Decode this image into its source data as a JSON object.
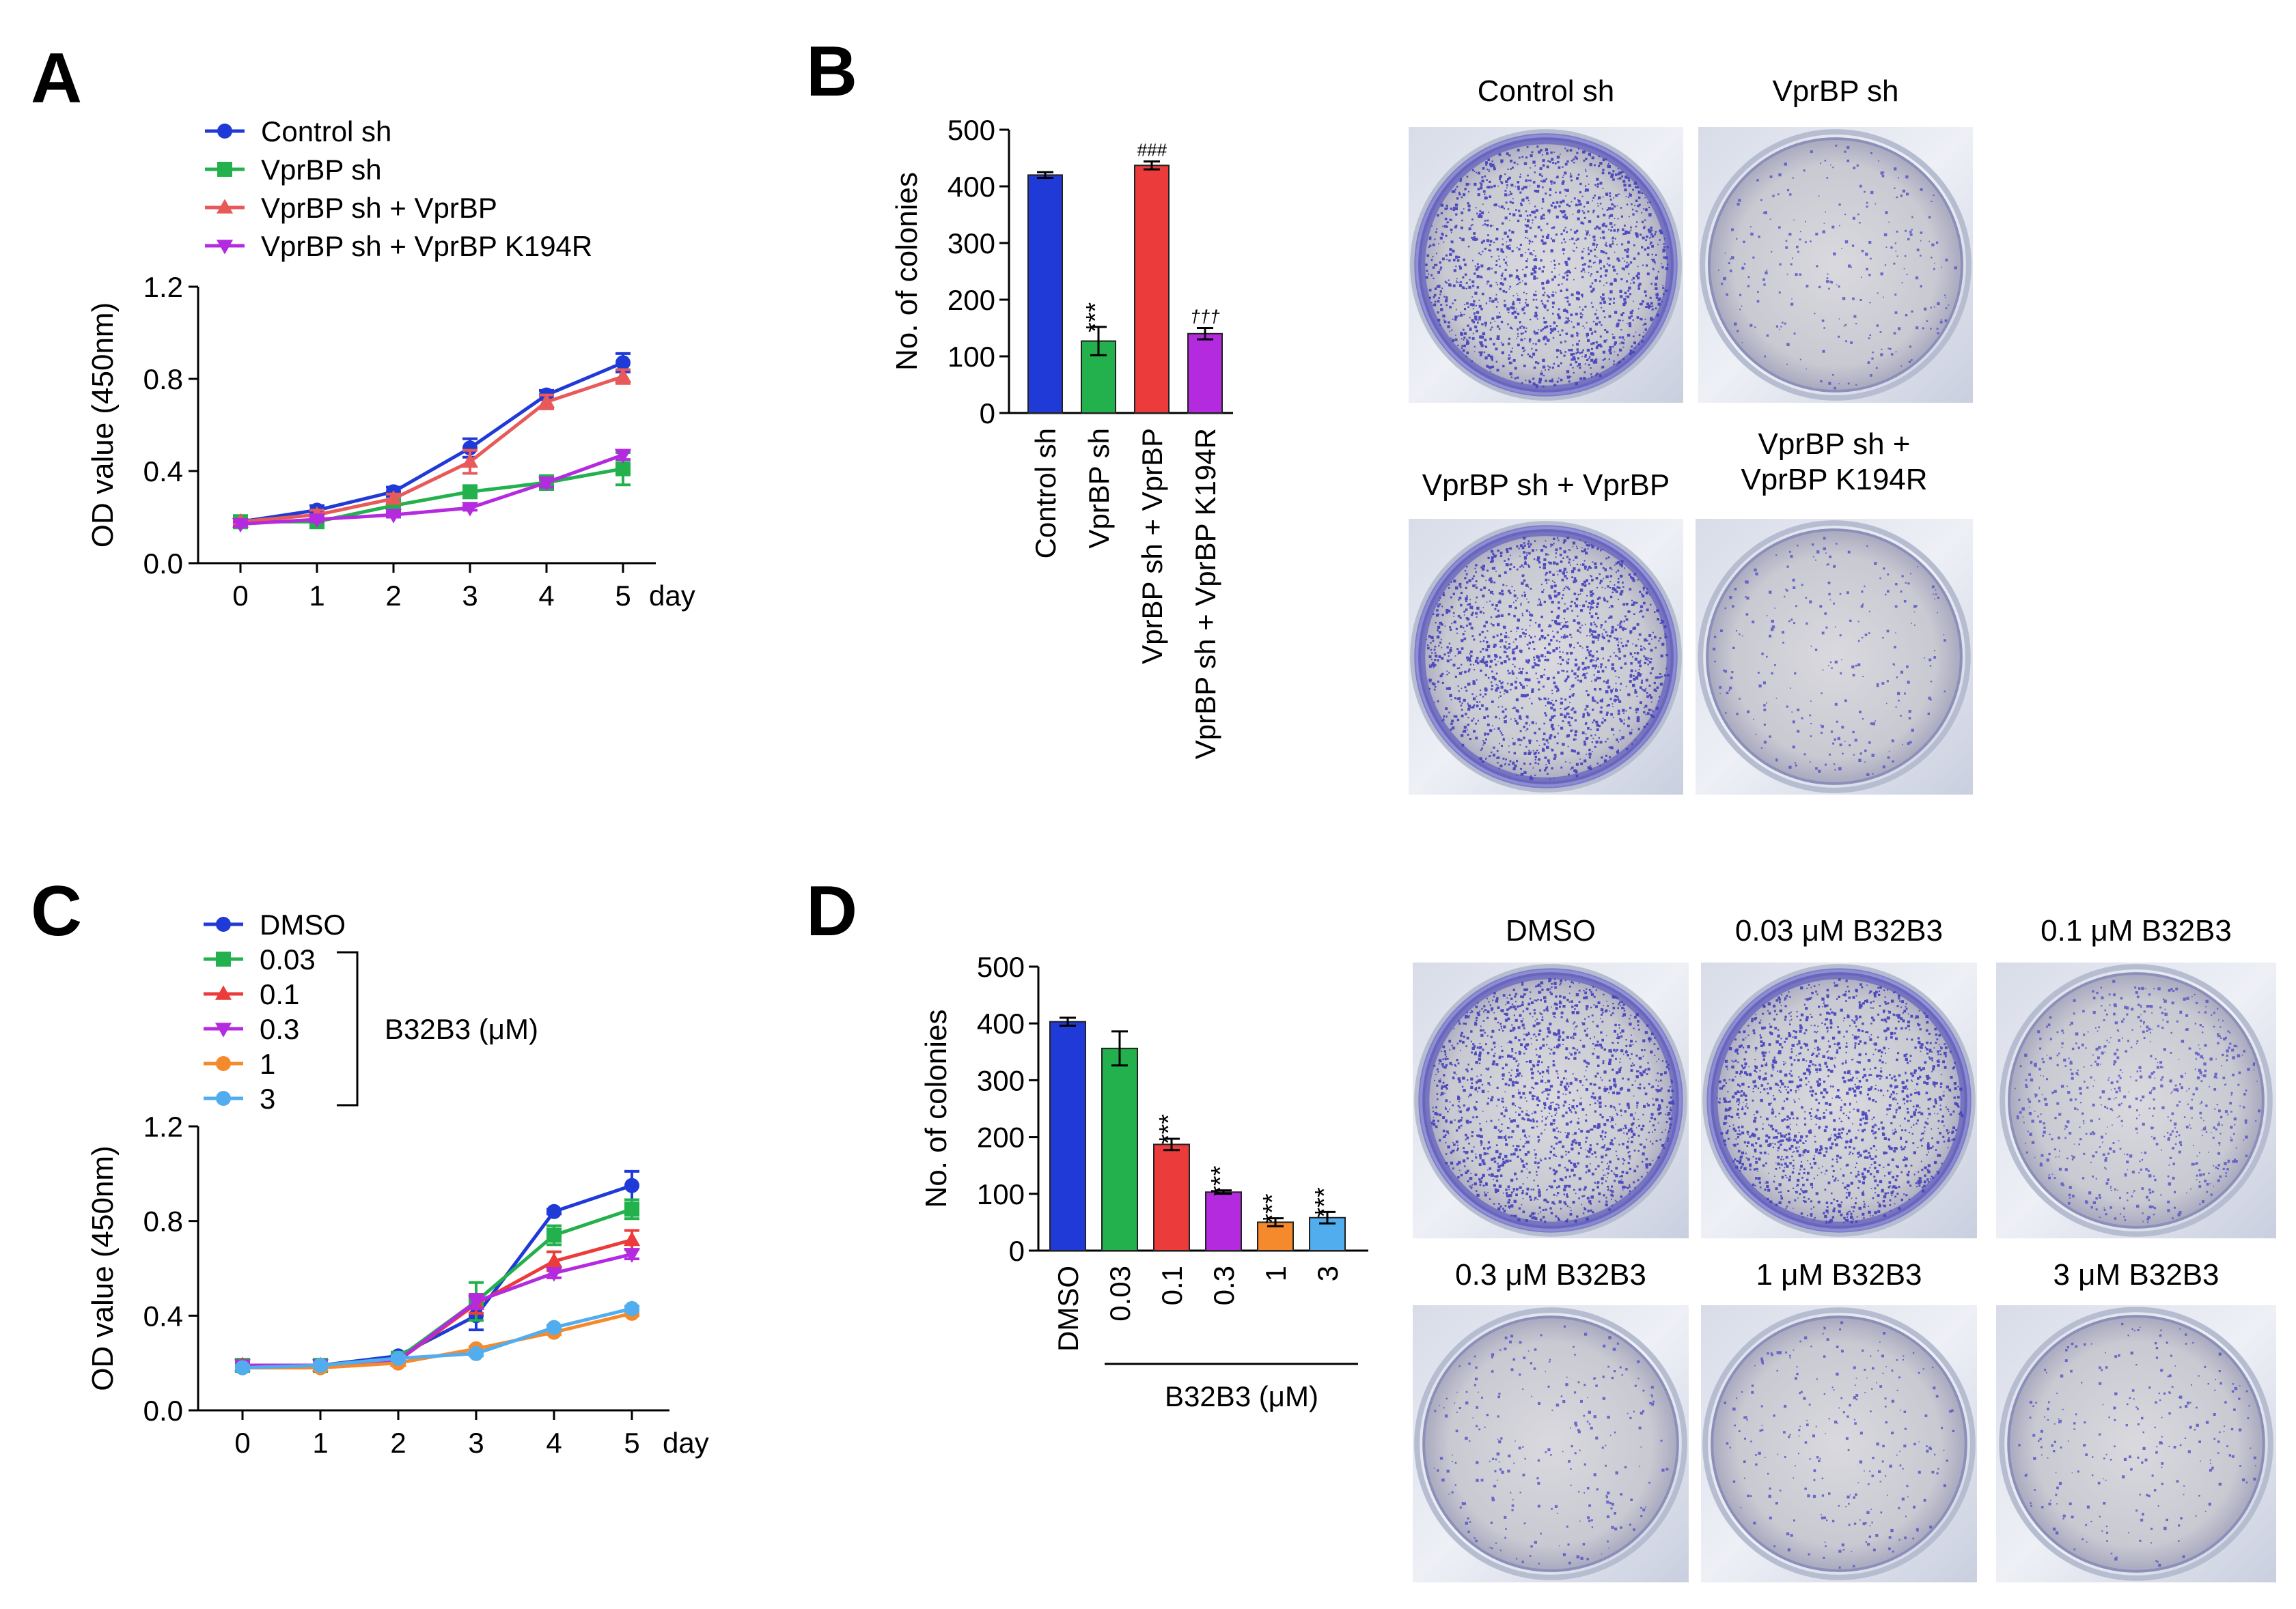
{
  "panels": {
    "A": "A",
    "B": "B",
    "C": "C",
    "D": "D"
  },
  "colors": {
    "blue": "#1f3ad6",
    "green": "#22b14c",
    "red": "#ec3b3b",
    "salmon": "#e85a5a",
    "purple": "#b42adf",
    "orange": "#f58a2c",
    "lightblue": "#52adef"
  },
  "chart_data": [
    {
      "id": "A",
      "type": "line",
      "title": "",
      "xlabel": "day",
      "ylabel": "OD value (450nm)",
      "x": [
        0,
        1,
        2,
        3,
        4,
        5
      ],
      "x_tick_labels": [
        "0",
        "1",
        "2",
        "3",
        "4",
        "5"
      ],
      "ylim": [
        0,
        1.2
      ],
      "y_ticks": [
        "0.0",
        "0.4",
        "0.8",
        "1.2"
      ],
      "legend_position": "top-left",
      "series": [
        {
          "name": "Control sh",
          "color": "#1f3ad6",
          "marker": "circle",
          "values": [
            0.18,
            0.23,
            0.31,
            0.5,
            0.73,
            0.87
          ],
          "errors": [
            0.01,
            0.02,
            0.02,
            0.04,
            0.02,
            0.04
          ]
        },
        {
          "name": "VprBP sh",
          "color": "#22b14c",
          "marker": "square",
          "values": [
            0.18,
            0.18,
            0.25,
            0.31,
            0.35,
            0.41
          ],
          "errors": [
            0.01,
            0.02,
            0.02,
            0.02,
            0.03,
            0.07
          ]
        },
        {
          "name": "VprBP sh + VprBP",
          "color": "#e85a5a",
          "marker": "triangle",
          "values": [
            0.18,
            0.21,
            0.28,
            0.44,
            0.7,
            0.81
          ],
          "errors": [
            0.01,
            0.02,
            0.02,
            0.05,
            0.03,
            0.03
          ]
        },
        {
          "name": "VprBP sh + VprBP K194R",
          "color": "#b42adf",
          "marker": "triangle-down",
          "values": [
            0.17,
            0.19,
            0.21,
            0.24,
            0.35,
            0.47
          ],
          "errors": [
            0.01,
            0.01,
            0.01,
            0.01,
            0.02,
            0.02
          ]
        }
      ]
    },
    {
      "id": "B",
      "type": "bar",
      "title": "",
      "ylabel": "No. of colonies",
      "ylim": [
        0,
        500
      ],
      "y_ticks": [
        "0",
        "100",
        "200",
        "300",
        "400",
        "500"
      ],
      "categories": [
        "Control sh",
        "VprBP sh",
        "VprBP sh + VprBP",
        "VprBP sh + VprBP K194R"
      ],
      "values": [
        420,
        127,
        437,
        140
      ],
      "errors": [
        5,
        25,
        7,
        10
      ],
      "colors": [
        "#1f3ad6",
        "#22b14c",
        "#ec3b3b",
        "#b42adf"
      ],
      "annotations": [
        "",
        "***",
        "###",
        "†††"
      ]
    },
    {
      "id": "C",
      "type": "line",
      "title": "",
      "xlabel": "day",
      "ylabel": "OD value (450nm)",
      "x": [
        0,
        1,
        2,
        3,
        4,
        5
      ],
      "x_tick_labels": [
        "0",
        "1",
        "2",
        "3",
        "4",
        "5"
      ],
      "ylim": [
        0,
        1.2
      ],
      "y_ticks": [
        "0.0",
        "0.4",
        "0.8",
        "1.2"
      ],
      "legend_position": "top-left",
      "legend_group_label": "B32B3 (μM)",
      "series": [
        {
          "name": "DMSO",
          "color": "#1f3ad6",
          "marker": "circle",
          "values": [
            0.19,
            0.19,
            0.23,
            0.4,
            0.84,
            0.95
          ],
          "errors": [
            0.01,
            0.01,
            0.01,
            0.06,
            0.01,
            0.06
          ]
        },
        {
          "name": "0.03",
          "color": "#22b14c",
          "marker": "square",
          "values": [
            0.19,
            0.19,
            0.22,
            0.46,
            0.74,
            0.85
          ],
          "errors": [
            0.01,
            0.01,
            0.01,
            0.08,
            0.04,
            0.04
          ]
        },
        {
          "name": "0.1",
          "color": "#ec3b3b",
          "marker": "triangle",
          "values": [
            0.19,
            0.19,
            0.21,
            0.45,
            0.63,
            0.72
          ],
          "errors": [
            0.01,
            0.01,
            0.01,
            0.04,
            0.04,
            0.04
          ]
        },
        {
          "name": "0.3",
          "color": "#b42adf",
          "marker": "triangle-down",
          "values": [
            0.19,
            0.19,
            0.21,
            0.46,
            0.58,
            0.66
          ],
          "errors": [
            0.01,
            0.01,
            0.01,
            0.03,
            0.02,
            0.02
          ]
        },
        {
          "name": "1",
          "color": "#f58a2c",
          "marker": "circle",
          "values": [
            0.18,
            0.18,
            0.2,
            0.26,
            0.33,
            0.41
          ],
          "errors": [
            0.01,
            0.01,
            0.01,
            0.01,
            0.01,
            0.01
          ]
        },
        {
          "name": "3",
          "color": "#52adef",
          "marker": "circle",
          "values": [
            0.18,
            0.19,
            0.22,
            0.24,
            0.35,
            0.43
          ],
          "errors": [
            0.01,
            0.01,
            0.01,
            0.01,
            0.01,
            0.01
          ]
        }
      ]
    },
    {
      "id": "D",
      "type": "bar",
      "title": "",
      "ylabel": "No. of colonies",
      "xlabel": "B32B3 (μM)",
      "ylim": [
        0,
        500
      ],
      "y_ticks": [
        "0",
        "100",
        "200",
        "300",
        "400",
        "500"
      ],
      "categories": [
        "DMSO",
        "0.03",
        "0.1",
        "0.3",
        "1",
        "3"
      ],
      "values": [
        403,
        356,
        187,
        103,
        50,
        58
      ],
      "errors": [
        7,
        30,
        10,
        3,
        7,
        10
      ],
      "colors": [
        "#1f3ad6",
        "#22b14c",
        "#ec3b3b",
        "#b42adf",
        "#f58a2c",
        "#52adef"
      ],
      "annotations": [
        "",
        "",
        "***",
        "***",
        "***",
        "***"
      ]
    }
  ],
  "images": {
    "B": [
      {
        "caption_lines": [
          "Control sh"
        ],
        "density": "high"
      },
      {
        "caption_lines": [
          "VprBP sh"
        ],
        "density": "low"
      },
      {
        "caption_lines": [
          "VprBP sh + VprBP"
        ],
        "density": "high"
      },
      {
        "caption_lines": [
          "VprBP sh +",
          "VprBP K194R"
        ],
        "density": "low"
      }
    ],
    "D": [
      {
        "caption_lines": [
          "DMSO"
        ],
        "density": "high"
      },
      {
        "caption_lines": [
          "0.03 μM B32B3"
        ],
        "density": "high"
      },
      {
        "caption_lines": [
          "0.1 μM B32B3"
        ],
        "density": "medium"
      },
      {
        "caption_lines": [
          "0.3 μM B32B3"
        ],
        "density": "low"
      },
      {
        "caption_lines": [
          "1 μM B32B3"
        ],
        "density": "low"
      },
      {
        "caption_lines": [
          "3 μM B32B3"
        ],
        "density": "low"
      }
    ]
  }
}
